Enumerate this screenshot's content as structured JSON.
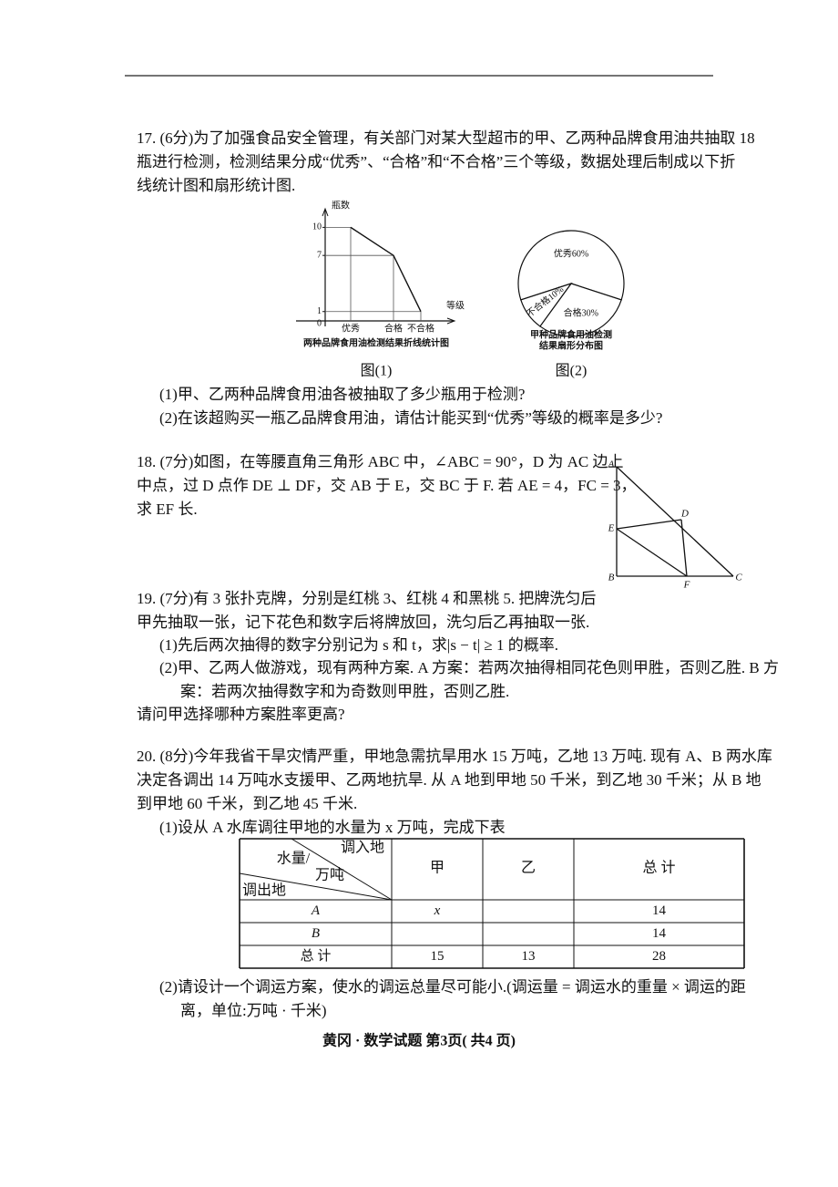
{
  "questions": [
    {
      "lines": [
        "17. (6分)为了加强食品安全管理，有关部门对某大型超市的甲、乙两种品牌食用油共抽取 18",
        "瓶进行检测，检测结果分成“优秀”、“合格”和“不合格”三个等级，数据处理后制成以下折",
        "线统计图和扇形统计图.",
        "(1)甲、乙两种品牌食用油各被抽取了多少瓶用于检测?",
        "(2)在该超购买一瓶乙品牌食用油，请估计能买到“优秀”等级的概率是多少?"
      ]
    },
    {
      "lines": [
        "18. (7分)如图，在等腰直角三角形 ABC 中，∠ABC = 90°，D 为 AC 边上",
        "中点，过 D 点作 DE ⊥ DF，交 AB 于 E，交 BC 于 F. 若 AE = 4，FC = 3，",
        "求 EF 长."
      ]
    },
    {
      "lines": [
        "19. (7分)有 3 张扑克牌，分别是红桃 3、红桃 4 和黑桃 5. 把牌洗匀后",
        "甲先抽取一张，记下花色和数字后将牌放回，洗匀后乙再抽取一张.",
        "(1)先后两次抽得的数字分别记为 s 和 t，求|s − t| ≥ 1 的概率.",
        "(2)甲、乙两人做游戏，现有两种方案. A 方案：若两次抽得相同花色则甲胜，否则乙胜. B 方",
        "案：若两次抽得数字和为奇数则甲胜，否则乙胜.",
        "请问甲选择哪种方案胜率更高?"
      ]
    },
    {
      "lines": [
        "20. (8分)今年我省干旱灾情严重，甲地急需抗旱用水 15 万吨，乙地 13 万吨. 现有 A、B 两水库",
        "决定各调出 14 万吨水支援甲、乙两地抗旱. 从 A 地到甲地 50 千米，到乙地 30 千米；从 B 地",
        "到甲地 60 千米，到乙地 45 千米.",
        "(1)设从 A 水库调往甲地的水量为 x 万吨，完成下表",
        "(2)请设计一个调运方案，使水的调运总量尽可能小.(调运量 = 调运水的重量 × 调运的距",
        "离，单位:万吨 · 千米)"
      ]
    }
  ],
  "figure_1": {
    "type": "line",
    "label": "图(1)",
    "caption": "两种品牌食用油检测结果折线统计图",
    "y_label": "瓶数",
    "x_label": "等级",
    "categories": [
      "优秀",
      "合格",
      "不合格"
    ],
    "values": [
      10,
      7,
      1
    ],
    "ylim": [
      0,
      11.5
    ],
    "yticks": [
      0,
      1,
      7,
      10
    ]
  },
  "figure_2": {
    "type": "pie",
    "label": "图(2)",
    "caption": [
      "甲种品牌食用油检测",
      "结果扇形分布图"
    ],
    "categories": [
      "优秀",
      "合格",
      "不合格"
    ],
    "values": [
      60,
      30,
      10
    ],
    "value_labels": [
      "优秀60%",
      "合格30%",
      "不合格10%"
    ]
  },
  "geometry_figure": {
    "points": [
      "A",
      "B",
      "C",
      "D",
      "E",
      "F"
    ]
  },
  "table": {
    "corner": [
      "调入地",
      "水量/",
      "万吨",
      "调出地"
    ],
    "columns": [
      "甲",
      "乙",
      "总 计"
    ],
    "rows": [
      [
        "A",
        "x",
        null,
        "14"
      ],
      [
        "B",
        null,
        null,
        "14"
      ],
      [
        "总 计",
        "15",
        "13",
        "28"
      ]
    ]
  },
  "footer": "黄冈 · 数学试题 第3页( 共4 页)"
}
